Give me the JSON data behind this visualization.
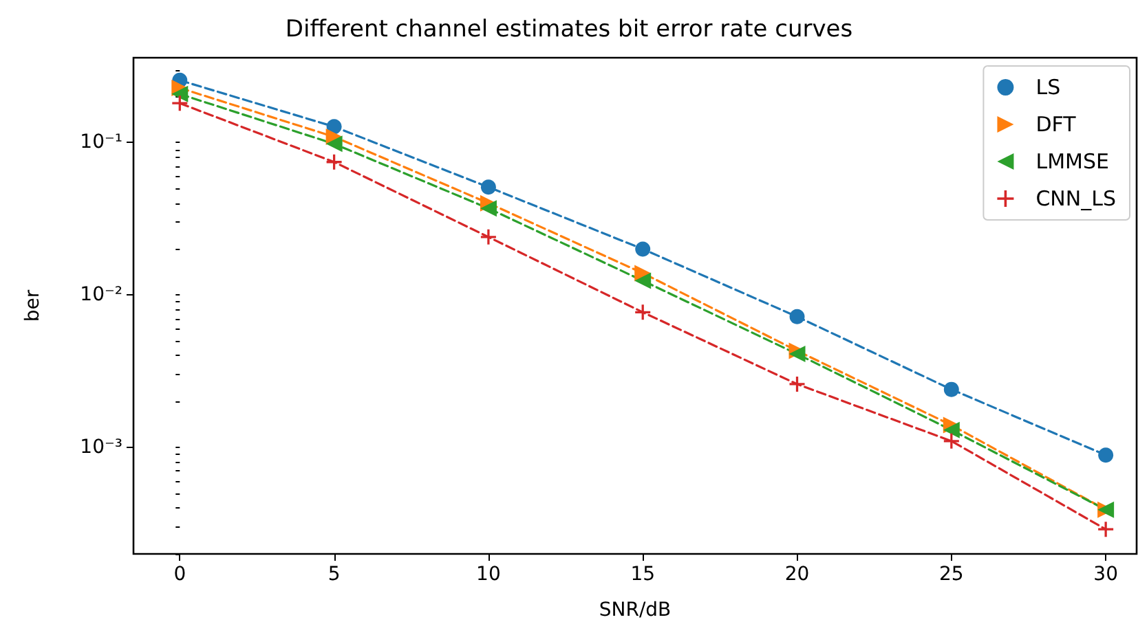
{
  "chart_data": {
    "type": "line",
    "title": "Different channel estimates bit error rate curves",
    "xlabel": "SNR/dB",
    "ylabel": "ber",
    "x": [
      0,
      5,
      10,
      15,
      20,
      25,
      30
    ],
    "series": [
      {
        "name": "LS",
        "color": "#1f77b4",
        "marker": "circle",
        "values": [
          0.256,
          0.127,
          0.051,
          0.02,
          0.0072,
          0.0024,
          0.00089
        ]
      },
      {
        "name": "DFT",
        "color": "#ff7f0e",
        "marker": "triangle-right",
        "values": [
          0.228,
          0.109,
          0.04,
          0.0139,
          0.0043,
          0.0014,
          0.00039
        ]
      },
      {
        "name": "LMMSE",
        "color": "#2ca02c",
        "marker": "triangle-left",
        "values": [
          0.208,
          0.098,
          0.037,
          0.0124,
          0.0041,
          0.0013,
          0.00039
        ]
      },
      {
        "name": "CNN_LS",
        "color": "#d62728",
        "marker": "plus",
        "values": [
          0.181,
          0.0745,
          0.024,
          0.0077,
          0.0026,
          0.0011,
          0.00029
        ]
      }
    ],
    "log": "y",
    "line_style": "dashed",
    "legend": "top right",
    "grid": false,
    "xlim": [
      -1.5,
      31
    ],
    "xticks": [
      0,
      5,
      10,
      15,
      20,
      25,
      30
    ],
    "ylim": [
      0.0002,
      0.36
    ],
    "yticks": [
      {
        "value": 0.0002,
        "label": null
      },
      {
        "value": 0.0003,
        "label": null
      },
      {
        "value": 0.0004,
        "label": null
      },
      {
        "value": 0.0005,
        "label": null
      },
      {
        "value": 0.0006,
        "label": null
      },
      {
        "value": 0.0007,
        "label": null
      },
      {
        "value": 0.0008,
        "label": null
      },
      {
        "value": 0.0009,
        "label": null
      },
      {
        "value": 0.001,
        "label": "10⁻³"
      },
      {
        "value": 0.002,
        "label": null
      },
      {
        "value": 0.003,
        "label": null
      },
      {
        "value": 0.004,
        "label": null
      },
      {
        "value": 0.005,
        "label": null
      },
      {
        "value": 0.006,
        "label": null
      },
      {
        "value": 0.007,
        "label": null
      },
      {
        "value": 0.008,
        "label": null
      },
      {
        "value": 0.009,
        "label": null
      },
      {
        "value": 0.01,
        "label": "10⁻²"
      },
      {
        "value": 0.02,
        "label": null
      },
      {
        "value": 0.03,
        "label": null
      },
      {
        "value": 0.04,
        "label": null
      },
      {
        "value": 0.05,
        "label": null
      },
      {
        "value": 0.06,
        "label": null
      },
      {
        "value": 0.07,
        "label": null
      },
      {
        "value": 0.08,
        "label": null
      },
      {
        "value": 0.09,
        "label": null
      },
      {
        "value": 0.1,
        "label": "10⁻¹"
      },
      {
        "value": 0.2,
        "label": null
      },
      {
        "value": 0.3,
        "label": null
      }
    ]
  }
}
